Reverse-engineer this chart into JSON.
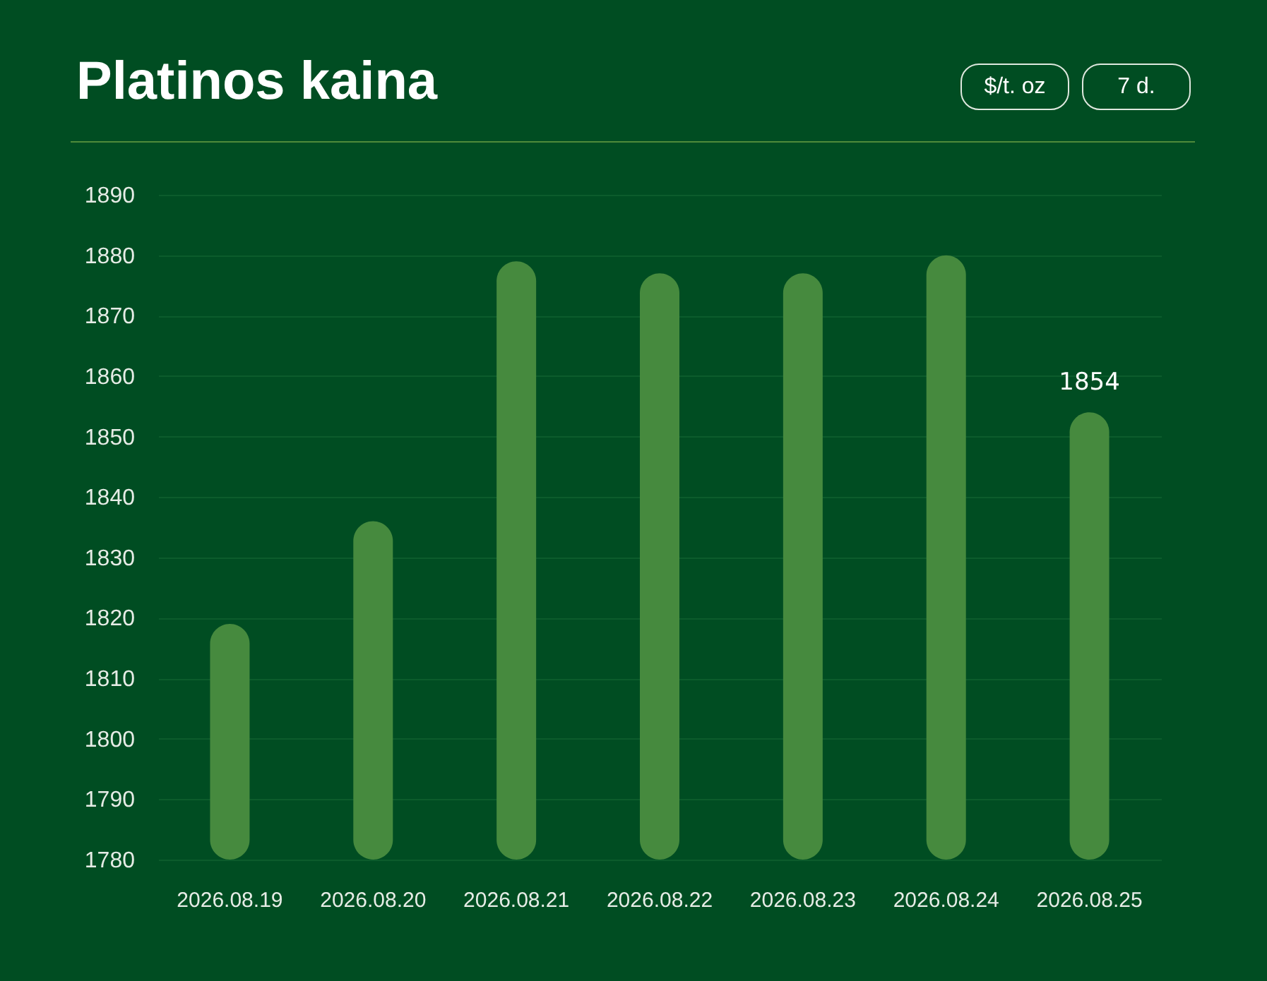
{
  "chart_data": {
    "type": "bar",
    "title": "Platinos kaina",
    "annotations": [
      "$/t. oz",
      "7 d."
    ],
    "categories": [
      "2026.08.19",
      "2026.08.20",
      "2026.08.21",
      "2026.08.22",
      "2026.08.23",
      "2026.08.24",
      "2026.08.25"
    ],
    "values": [
      1819,
      1836,
      1879,
      1877,
      1877,
      1880,
      1854
    ],
    "color": "#468a3e",
    "value_labels": [
      null,
      null,
      null,
      null,
      null,
      null,
      "1854"
    ],
    "ylim": [
      1780,
      1890
    ],
    "yticks": [
      1780,
      1790,
      1800,
      1810,
      1820,
      1830,
      1840,
      1850,
      1860,
      1870,
      1880,
      1890
    ],
    "grid": "y"
  }
}
